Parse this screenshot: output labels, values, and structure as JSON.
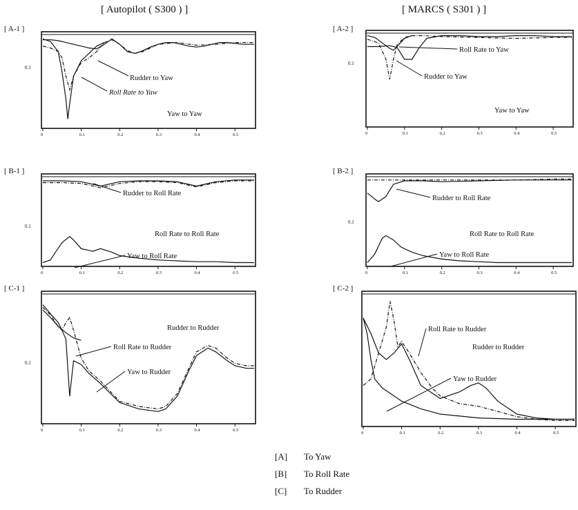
{
  "columns": [
    {
      "title": "[ Autopilot ( S300 ) ]"
    },
    {
      "title": "[ MARCS ( S301 ) ]"
    }
  ],
  "legend": [
    {
      "key": "[A]",
      "label": "To Yaw"
    },
    {
      "key": "[B]",
      "label": "To Roll Rate"
    },
    {
      "key": "[C]",
      "label": "To Rudder"
    }
  ],
  "chart_data": [
    {
      "type": "line",
      "panel": "[ A-1 ]",
      "ytick": "0.1",
      "xticks": [
        "0",
        "0.1",
        "0.2",
        "0.3",
        "0.4",
        "0.5"
      ],
      "xlim": [
        0,
        0.55
      ],
      "ylim": [
        0,
        1
      ],
      "series": [
        {
          "name": "Yaw to Yaw",
          "style": "solid",
          "x": [
            0,
            0.02,
            0.04,
            0.06,
            0.08,
            0.1,
            0.12,
            0.14,
            0.16,
            0.18,
            0.2,
            0.22,
            0.24,
            0.26,
            0.28,
            0.3,
            0.32,
            0.34,
            0.36,
            0.38,
            0.4,
            0.42,
            0.44,
            0.46,
            0.48,
            0.5,
            0.52,
            0.55
          ],
          "y": [
            0.95,
            0.95,
            0.94,
            0.92,
            0.9,
            0.88,
            0.86,
            0.85,
            0.9,
            0.96,
            0.9,
            0.82,
            0.8,
            0.83,
            0.87,
            0.9,
            0.92,
            0.92,
            0.9,
            0.88,
            0.87,
            0.88,
            0.9,
            0.92,
            0.92,
            0.91,
            0.9,
            0.9
          ]
        },
        {
          "name": "Roll Rate to Yaw",
          "style": "dashdot",
          "x": [
            0,
            0.02,
            0.04,
            0.05,
            0.06,
            0.07,
            0.08,
            0.1,
            0.12,
            0.14,
            0.16,
            0.18,
            0.2,
            0.22,
            0.24,
            0.26,
            0.28,
            0.3,
            0.35,
            0.4,
            0.45,
            0.5,
            0.55
          ],
          "y": [
            0.88,
            0.86,
            0.82,
            0.75,
            0.55,
            0.4,
            0.55,
            0.7,
            0.75,
            0.82,
            0.92,
            0.95,
            0.9,
            0.83,
            0.8,
            0.82,
            0.86,
            0.9,
            0.92,
            0.89,
            0.9,
            0.92,
            0.92
          ]
        },
        {
          "name": "Rudder to Yaw",
          "style": "solid",
          "x": [
            0,
            0.02,
            0.04,
            0.05,
            0.06,
            0.065,
            0.07,
            0.08,
            0.1,
            0.12,
            0.14,
            0.16
          ],
          "y": [
            0.96,
            0.93,
            0.82,
            0.6,
            0.3,
            0.08,
            0.25,
            0.55,
            0.72,
            0.8,
            0.88,
            0.92
          ]
        }
      ],
      "annotations": [
        "Rudder to Yaw",
        "Roll Rate to Yaw",
        "Yaw to Yaw"
      ]
    },
    {
      "type": "line",
      "panel": "[ A-2 ]",
      "ytick": "0.1",
      "xticks": [
        "0",
        "0.1",
        "0.2",
        "0.3",
        "0.4",
        "0.5"
      ],
      "xlim": [
        0,
        0.55
      ],
      "ylim": [
        0,
        1
      ],
      "series": [
        {
          "name": "Yaw to Yaw",
          "style": "solid",
          "x": [
            0,
            0.03,
            0.06,
            0.08,
            0.1,
            0.12,
            0.14,
            0.16,
            0.2,
            0.25,
            0.3,
            0.35,
            0.4,
            0.45,
            0.5,
            0.55
          ],
          "y": [
            0.86,
            0.86,
            0.87,
            0.85,
            0.72,
            0.72,
            0.85,
            0.95,
            0.98,
            0.98,
            0.97,
            0.97,
            0.98,
            0.98,
            0.97,
            0.97
          ]
        },
        {
          "name": "Roll Rate to Yaw",
          "style": "dashdot",
          "x": [
            0,
            0.03,
            0.05,
            0.06,
            0.07,
            0.08,
            0.1,
            0.12,
            0.15,
            0.2,
            0.3,
            0.4,
            0.5,
            0.55
          ],
          "y": [
            0.94,
            0.9,
            0.72,
            0.5,
            0.72,
            0.88,
            0.96,
            0.98,
            0.98,
            0.97,
            0.96,
            0.95,
            0.96,
            0.96
          ]
        },
        {
          "name": "Rudder to Yaw",
          "style": "solid",
          "x": [
            0,
            0.02,
            0.04,
            0.06,
            0.07,
            0.08,
            0.1,
            0.12
          ],
          "y": [
            0.98,
            0.96,
            0.9,
            0.84,
            0.82,
            0.86,
            0.95,
            0.98
          ]
        }
      ],
      "annotations": [
        "Roll Rate to Yaw",
        "Rudder to Yaw",
        "Yaw to Yaw"
      ]
    },
    {
      "type": "line",
      "panel": "[ B-1 ]",
      "ytick": "0.1",
      "xticks": [
        "0",
        "0.1",
        "0.2",
        "0.3",
        "0.4",
        "0.5"
      ],
      "xlim": [
        0,
        0.55
      ],
      "ylim": [
        0,
        1
      ],
      "series": [
        {
          "name": "Roll Rate to Roll Rate",
          "style": "solid",
          "x": [
            0,
            0.05,
            0.1,
            0.15,
            0.2,
            0.25,
            0.3,
            0.35,
            0.4,
            0.45,
            0.5,
            0.55
          ],
          "y": [
            0.96,
            0.96,
            0.95,
            0.9,
            0.95,
            0.96,
            0.96,
            0.95,
            0.9,
            0.95,
            0.97,
            0.97
          ]
        },
        {
          "name": "Rudder to Roll Rate",
          "style": "dashdot",
          "x": [
            0,
            0.05,
            0.1,
            0.15,
            0.2,
            0.25,
            0.3,
            0.35,
            0.4,
            0.45,
            0.5,
            0.55
          ],
          "y": [
            0.94,
            0.94,
            0.93,
            0.88,
            0.93,
            0.95,
            0.95,
            0.94,
            0.89,
            0.94,
            0.96,
            0.96
          ]
        },
        {
          "name": "Yaw to Roll Rate",
          "style": "solid",
          "x": [
            0,
            0.02,
            0.03,
            0.05,
            0.07,
            0.08,
            0.1,
            0.13,
            0.15,
            0.18,
            0.2,
            0.25,
            0.3,
            0.35,
            0.4,
            0.45,
            0.5,
            0.55
          ],
          "y": [
            0.02,
            0.05,
            0.12,
            0.25,
            0.32,
            0.28,
            0.18,
            0.15,
            0.18,
            0.14,
            0.1,
            0.07,
            0.05,
            0.04,
            0.03,
            0.03,
            0.02,
            0.02
          ]
        }
      ],
      "annotations": [
        "Rudder to Roll Rate",
        "Roll Rate to Roll Rate",
        "Yaw to Roll Rate"
      ]
    },
    {
      "type": "line",
      "panel": "[ B-2 ]",
      "ytick": "0.1",
      "xticks": [
        "0",
        "0.1",
        "0.2",
        "0.3",
        "0.4",
        "0.5"
      ],
      "xlim": [
        0,
        0.55
      ],
      "ylim": [
        0,
        1
      ],
      "series": [
        {
          "name": "Roll Rate to Roll Rate",
          "style": "solid",
          "x": [
            0,
            0.02,
            0.03,
            0.05,
            0.07,
            0.1,
            0.15,
            0.2,
            0.3,
            0.4,
            0.5,
            0.55
          ],
          "y": [
            0.82,
            0.75,
            0.72,
            0.78,
            0.92,
            0.96,
            0.96,
            0.95,
            0.96,
            0.97,
            0.97,
            0.97
          ]
        },
        {
          "name": "Rudder to Roll Rate",
          "style": "dashdot",
          "x": [
            0,
            0.1,
            0.2,
            0.3,
            0.4,
            0.5,
            0.55
          ],
          "y": [
            0.97,
            0.97,
            0.97,
            0.97,
            0.97,
            0.98,
            0.98
          ]
        },
        {
          "name": "Yaw to Roll Rate",
          "style": "solid",
          "x": [
            0,
            0.02,
            0.04,
            0.05,
            0.07,
            0.09,
            0.12,
            0.15,
            0.2,
            0.25,
            0.3,
            0.35,
            0.4,
            0.45,
            0.5,
            0.55
          ],
          "y": [
            0.02,
            0.12,
            0.3,
            0.33,
            0.28,
            0.2,
            0.14,
            0.1,
            0.06,
            0.04,
            0.03,
            0.02,
            0.02,
            0.02,
            0.02,
            0.02
          ]
        }
      ],
      "annotations": [
        "Rudder to Roll Rate",
        "Roll Rate to Roll Rate",
        "Yaw to Roll Rate"
      ]
    },
    {
      "type": "line",
      "panel": "[ C-1 ]",
      "ytick": "0.1",
      "xticks": [
        "0",
        "0.1",
        "0.2",
        "0.3",
        "0.4",
        "0.5"
      ],
      "xlim": [
        0,
        0.55
      ],
      "ylim": [
        0,
        1
      ],
      "series": [
        {
          "name": "Rudder to Rudder",
          "style": "solid",
          "x": [
            0,
            0.02,
            0.04,
            0.05,
            0.06,
            0.07,
            0.08,
            0.1,
            0.12,
            0.15,
            0.2,
            0.25,
            0.3,
            0.32,
            0.35,
            0.38,
            0.4,
            0.43,
            0.45,
            0.48,
            0.5,
            0.53,
            0.55
          ],
          "y": [
            0.92,
            0.85,
            0.78,
            0.72,
            0.65,
            0.2,
            0.48,
            0.45,
            0.38,
            0.3,
            0.15,
            0.1,
            0.08,
            0.1,
            0.2,
            0.4,
            0.52,
            0.58,
            0.55,
            0.48,
            0.44,
            0.42,
            0.42
          ]
        },
        {
          "name": "Roll Rate to Rudder",
          "style": "dashdot",
          "x": [
            0,
            0.02,
            0.04,
            0.05,
            0.06,
            0.07,
            0.08,
            0.1,
            0.12,
            0.15,
            0.2,
            0.25,
            0.3,
            0.32,
            0.35,
            0.38,
            0.4,
            0.43,
            0.45,
            0.48,
            0.5,
            0.53,
            0.55
          ],
          "y": [
            0.9,
            0.84,
            0.75,
            0.72,
            0.78,
            0.82,
            0.72,
            0.5,
            0.4,
            0.32,
            0.16,
            0.12,
            0.1,
            0.12,
            0.22,
            0.42,
            0.55,
            0.6,
            0.58,
            0.5,
            0.46,
            0.44,
            0.44
          ]
        },
        {
          "name": "Yaw to Rudder",
          "style": "solid",
          "x": [
            0,
            0.02,
            0.04,
            0.06,
            0.08,
            0.1
          ],
          "y": [
            0.88,
            0.82,
            0.75,
            0.7,
            0.66,
            0.64
          ]
        }
      ],
      "annotations": [
        "Rudder to Rudder",
        "Roll Rate to Rudder",
        "Yaw to Rudder"
      ]
    },
    {
      "type": "line",
      "panel": "[ C-2 ]",
      "ytick": "0.1",
      "xticks": [
        "0",
        "0.1",
        "0.2",
        "0.3",
        "0.4",
        "0.5"
      ],
      "xlim": [
        0,
        0.55
      ],
      "ylim": [
        0,
        1
      ],
      "series": [
        {
          "name": "Rudder to Rudder",
          "style": "solid",
          "x": [
            0,
            0.01,
            0.02,
            0.03,
            0.05,
            0.1,
            0.15,
            0.2,
            0.3,
            0.4,
            0.5,
            0.55
          ],
          "y": [
            0.82,
            0.7,
            0.5,
            0.35,
            0.28,
            0.18,
            0.12,
            0.08,
            0.05,
            0.04,
            0.04,
            0.04
          ]
        },
        {
          "name": "Roll Rate to Rudder",
          "style": "dashdot",
          "x": [
            0,
            0.02,
            0.04,
            0.06,
            0.07,
            0.08,
            0.09,
            0.1,
            0.12,
            0.15,
            0.18,
            0.2,
            0.25,
            0.3,
            0.35,
            0.4,
            0.45,
            0.5,
            0.55
          ],
          "y": [
            0.3,
            0.35,
            0.55,
            0.75,
            0.95,
            0.8,
            0.6,
            0.64,
            0.55,
            0.4,
            0.28,
            0.22,
            0.16,
            0.14,
            0.1,
            0.06,
            0.04,
            0.03,
            0.03
          ]
        },
        {
          "name": "Yaw to Rudder",
          "style": "solid",
          "x": [
            0,
            0.02,
            0.04,
            0.06,
            0.08,
            0.1,
            0.12,
            0.15,
            0.2,
            0.25,
            0.28,
            0.3,
            0.32,
            0.35,
            0.4,
            0.45,
            0.5,
            0.55
          ],
          "y": [
            0.82,
            0.7,
            0.55,
            0.5,
            0.55,
            0.62,
            0.5,
            0.3,
            0.2,
            0.25,
            0.3,
            0.32,
            0.28,
            0.18,
            0.08,
            0.05,
            0.04,
            0.04
          ]
        }
      ],
      "annotations": [
        "Roll Rate to Rudder",
        "Rudder to Rudder",
        "Yaw to Rudder"
      ]
    }
  ]
}
